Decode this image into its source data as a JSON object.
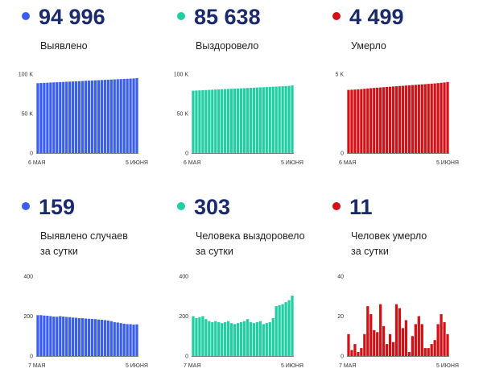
{
  "panels": [
    {
      "value": "94 996",
      "label_lines": [
        "Выявлено"
      ],
      "color": "#3a5ef5",
      "chart_data": {
        "type": "bar",
        "x_start": "6 МАЯ",
        "x_end": "5 ИЮНЯ",
        "y_ticks": [
          0,
          50000,
          100000
        ],
        "y_tick_labels": [
          "0",
          "50 K",
          "100 K"
        ],
        "ylim": [
          0,
          100000
        ],
        "values": [
          88500,
          88700,
          88900,
          89100,
          89300,
          89500,
          89700,
          89900,
          90100,
          90300,
          90500,
          90700,
          90900,
          91100,
          91300,
          91500,
          91700,
          91900,
          92100,
          92300,
          92500,
          92700,
          92900,
          93100,
          93300,
          93500,
          93700,
          93900,
          94100,
          94300,
          94500,
          94996
        ]
      }
    },
    {
      "value": "85 638",
      "label_lines": [
        "Выздоровело"
      ],
      "color": "#1fcfa3",
      "chart_data": {
        "type": "bar",
        "x_start": "6 МАЯ",
        "x_end": "5 ИЮНЯ",
        "y_ticks": [
          0,
          50000,
          100000
        ],
        "y_tick_labels": [
          "0",
          "50 K",
          "100 K"
        ],
        "ylim": [
          0,
          100000
        ],
        "values": [
          79000,
          79200,
          79400,
          79600,
          79800,
          80000,
          80200,
          80400,
          80600,
          80800,
          81000,
          81200,
          81400,
          81600,
          81800,
          82000,
          82200,
          82400,
          82600,
          82800,
          83000,
          83200,
          83400,
          83600,
          83800,
          84000,
          84200,
          84400,
          84600,
          84800,
          85100,
          85638
        ]
      }
    },
    {
      "value": "4 499",
      "label_lines": [
        "Умерло"
      ],
      "color": "#d40f17",
      "chart_data": {
        "type": "bar",
        "x_start": "6 МАЯ",
        "x_end": "5 ИЮНЯ",
        "y_ticks": [
          0,
          5000
        ],
        "y_tick_labels": [
          "0",
          "5 K"
        ],
        "ylim": [
          0,
          5000
        ],
        "values": [
          4000,
          4010,
          4020,
          4035,
          4050,
          4070,
          4090,
          4110,
          4125,
          4140,
          4155,
          4170,
          4185,
          4200,
          4215,
          4230,
          4245,
          4260,
          4275,
          4290,
          4305,
          4320,
          4335,
          4350,
          4365,
          4380,
          4395,
          4410,
          4430,
          4450,
          4470,
          4499
        ]
      }
    },
    {
      "value": "159",
      "label_lines": [
        "Выявлено случаев",
        "за сутки"
      ],
      "color": "#3a5ef5",
      "chart_data": {
        "type": "bar",
        "x_start": "7 МАЯ",
        "x_end": "5 ИЮНЯ",
        "y_ticks": [
          0,
          200,
          400
        ],
        "y_tick_labels": [
          "0",
          "200",
          "400"
        ],
        "ylim": [
          0,
          400
        ],
        "values": [
          205,
          205,
          203,
          202,
          200,
          198,
          197,
          200,
          198,
          196,
          195,
          193,
          192,
          190,
          190,
          188,
          187,
          186,
          185,
          183,
          182,
          180,
          178,
          175,
          170,
          168,
          165,
          162,
          160,
          160,
          158,
          159
        ]
      }
    },
    {
      "value": "303",
      "label_lines": [
        "Человека выздоровело",
        "за сутки"
      ],
      "color": "#1fcfa3",
      "chart_data": {
        "type": "bar",
        "x_start": "7 МАЯ",
        "x_end": "5 ИЮНЯ",
        "y_ticks": [
          0,
          200,
          400
        ],
        "y_tick_labels": [
          "0",
          "200",
          "400"
        ],
        "ylim": [
          0,
          400
        ],
        "values": [
          200,
          190,
          195,
          200,
          185,
          175,
          170,
          175,
          170,
          165,
          170,
          175,
          165,
          160,
          165,
          170,
          175,
          185,
          170,
          165,
          170,
          175,
          160,
          165,
          170,
          190,
          250,
          255,
          260,
          270,
          280,
          303
        ]
      }
    },
    {
      "value": "11",
      "label_lines": [
        "Человек умерло",
        "за сутки"
      ],
      "color": "#d40f17",
      "chart_data": {
        "type": "bar",
        "x_start": "7 МАЯ",
        "x_end": "5 ИЮНЯ",
        "y_ticks": [
          0,
          20,
          40
        ],
        "y_tick_labels": [
          "0",
          "20",
          "40"
        ],
        "ylim": [
          0,
          40
        ],
        "values": [
          11,
          3,
          6,
          2,
          4,
          11,
          25,
          21,
          13,
          12,
          26,
          15,
          6,
          11,
          7,
          26,
          24,
          14,
          18,
          2,
          10,
          16,
          20,
          16,
          4,
          4,
          6,
          8,
          16,
          21,
          17,
          11
        ]
      }
    }
  ]
}
